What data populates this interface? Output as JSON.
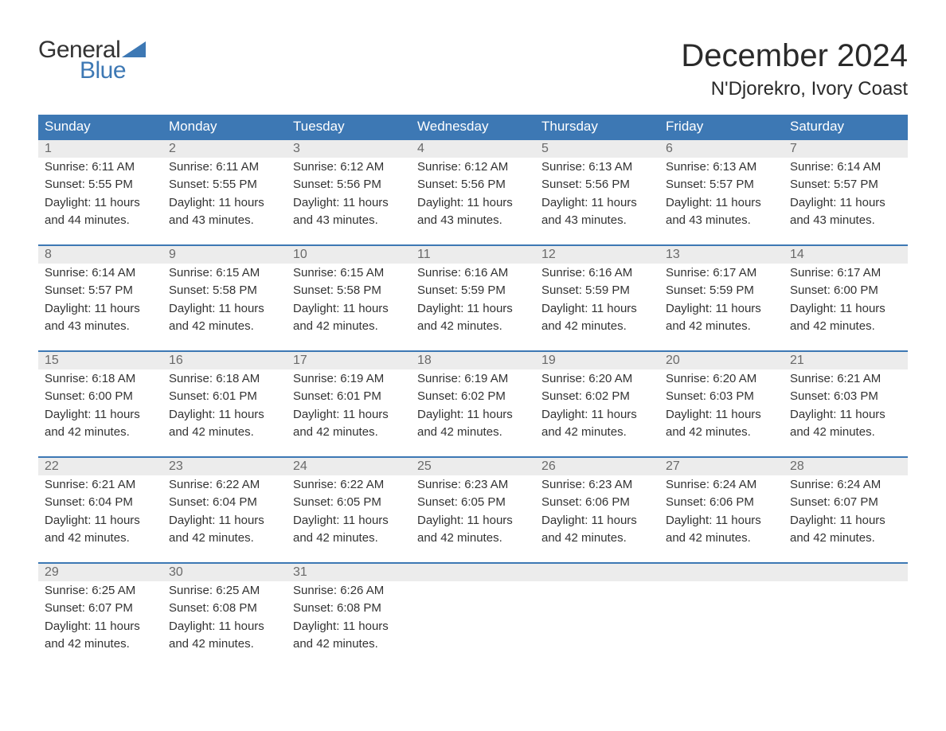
{
  "logo": {
    "general": "General",
    "blue": "Blue"
  },
  "title": "December 2024",
  "location": "N'Djorekro, Ivory Coast",
  "colors": {
    "header_bg": "#3d78b4",
    "header_text": "#ffffff",
    "daynum_bg": "#ececec",
    "daynum_text": "#6a6a6a",
    "week_border": "#3d78b4",
    "body_text": "#333333",
    "logo_blue": "#3d78b4",
    "page_bg": "#ffffff"
  },
  "fonts": {
    "title_size_pt": 30,
    "location_size_pt": 18,
    "header_size_pt": 13,
    "daynum_size_pt": 12,
    "body_size_pt": 11
  },
  "weekdays": [
    "Sunday",
    "Monday",
    "Tuesday",
    "Wednesday",
    "Thursday",
    "Friday",
    "Saturday"
  ],
  "weeks": [
    [
      {
        "n": "1",
        "sr": "Sunrise: 6:11 AM",
        "ss": "Sunset: 5:55 PM",
        "d1": "Daylight: 11 hours",
        "d2": "and 44 minutes."
      },
      {
        "n": "2",
        "sr": "Sunrise: 6:11 AM",
        "ss": "Sunset: 5:55 PM",
        "d1": "Daylight: 11 hours",
        "d2": "and 43 minutes."
      },
      {
        "n": "3",
        "sr": "Sunrise: 6:12 AM",
        "ss": "Sunset: 5:56 PM",
        "d1": "Daylight: 11 hours",
        "d2": "and 43 minutes."
      },
      {
        "n": "4",
        "sr": "Sunrise: 6:12 AM",
        "ss": "Sunset: 5:56 PM",
        "d1": "Daylight: 11 hours",
        "d2": "and 43 minutes."
      },
      {
        "n": "5",
        "sr": "Sunrise: 6:13 AM",
        "ss": "Sunset: 5:56 PM",
        "d1": "Daylight: 11 hours",
        "d2": "and 43 minutes."
      },
      {
        "n": "6",
        "sr": "Sunrise: 6:13 AM",
        "ss": "Sunset: 5:57 PM",
        "d1": "Daylight: 11 hours",
        "d2": "and 43 minutes."
      },
      {
        "n": "7",
        "sr": "Sunrise: 6:14 AM",
        "ss": "Sunset: 5:57 PM",
        "d1": "Daylight: 11 hours",
        "d2": "and 43 minutes."
      }
    ],
    [
      {
        "n": "8",
        "sr": "Sunrise: 6:14 AM",
        "ss": "Sunset: 5:57 PM",
        "d1": "Daylight: 11 hours",
        "d2": "and 43 minutes."
      },
      {
        "n": "9",
        "sr": "Sunrise: 6:15 AM",
        "ss": "Sunset: 5:58 PM",
        "d1": "Daylight: 11 hours",
        "d2": "and 42 minutes."
      },
      {
        "n": "10",
        "sr": "Sunrise: 6:15 AM",
        "ss": "Sunset: 5:58 PM",
        "d1": "Daylight: 11 hours",
        "d2": "and 42 minutes."
      },
      {
        "n": "11",
        "sr": "Sunrise: 6:16 AM",
        "ss": "Sunset: 5:59 PM",
        "d1": "Daylight: 11 hours",
        "d2": "and 42 minutes."
      },
      {
        "n": "12",
        "sr": "Sunrise: 6:16 AM",
        "ss": "Sunset: 5:59 PM",
        "d1": "Daylight: 11 hours",
        "d2": "and 42 minutes."
      },
      {
        "n": "13",
        "sr": "Sunrise: 6:17 AM",
        "ss": "Sunset: 5:59 PM",
        "d1": "Daylight: 11 hours",
        "d2": "and 42 minutes."
      },
      {
        "n": "14",
        "sr": "Sunrise: 6:17 AM",
        "ss": "Sunset: 6:00 PM",
        "d1": "Daylight: 11 hours",
        "d2": "and 42 minutes."
      }
    ],
    [
      {
        "n": "15",
        "sr": "Sunrise: 6:18 AM",
        "ss": "Sunset: 6:00 PM",
        "d1": "Daylight: 11 hours",
        "d2": "and 42 minutes."
      },
      {
        "n": "16",
        "sr": "Sunrise: 6:18 AM",
        "ss": "Sunset: 6:01 PM",
        "d1": "Daylight: 11 hours",
        "d2": "and 42 minutes."
      },
      {
        "n": "17",
        "sr": "Sunrise: 6:19 AM",
        "ss": "Sunset: 6:01 PM",
        "d1": "Daylight: 11 hours",
        "d2": "and 42 minutes."
      },
      {
        "n": "18",
        "sr": "Sunrise: 6:19 AM",
        "ss": "Sunset: 6:02 PM",
        "d1": "Daylight: 11 hours",
        "d2": "and 42 minutes."
      },
      {
        "n": "19",
        "sr": "Sunrise: 6:20 AM",
        "ss": "Sunset: 6:02 PM",
        "d1": "Daylight: 11 hours",
        "d2": "and 42 minutes."
      },
      {
        "n": "20",
        "sr": "Sunrise: 6:20 AM",
        "ss": "Sunset: 6:03 PM",
        "d1": "Daylight: 11 hours",
        "d2": "and 42 minutes."
      },
      {
        "n": "21",
        "sr": "Sunrise: 6:21 AM",
        "ss": "Sunset: 6:03 PM",
        "d1": "Daylight: 11 hours",
        "d2": "and 42 minutes."
      }
    ],
    [
      {
        "n": "22",
        "sr": "Sunrise: 6:21 AM",
        "ss": "Sunset: 6:04 PM",
        "d1": "Daylight: 11 hours",
        "d2": "and 42 minutes."
      },
      {
        "n": "23",
        "sr": "Sunrise: 6:22 AM",
        "ss": "Sunset: 6:04 PM",
        "d1": "Daylight: 11 hours",
        "d2": "and 42 minutes."
      },
      {
        "n": "24",
        "sr": "Sunrise: 6:22 AM",
        "ss": "Sunset: 6:05 PM",
        "d1": "Daylight: 11 hours",
        "d2": "and 42 minutes."
      },
      {
        "n": "25",
        "sr": "Sunrise: 6:23 AM",
        "ss": "Sunset: 6:05 PM",
        "d1": "Daylight: 11 hours",
        "d2": "and 42 minutes."
      },
      {
        "n": "26",
        "sr": "Sunrise: 6:23 AM",
        "ss": "Sunset: 6:06 PM",
        "d1": "Daylight: 11 hours",
        "d2": "and 42 minutes."
      },
      {
        "n": "27",
        "sr": "Sunrise: 6:24 AM",
        "ss": "Sunset: 6:06 PM",
        "d1": "Daylight: 11 hours",
        "d2": "and 42 minutes."
      },
      {
        "n": "28",
        "sr": "Sunrise: 6:24 AM",
        "ss": "Sunset: 6:07 PM",
        "d1": "Daylight: 11 hours",
        "d2": "and 42 minutes."
      }
    ],
    [
      {
        "n": "29",
        "sr": "Sunrise: 6:25 AM",
        "ss": "Sunset: 6:07 PM",
        "d1": "Daylight: 11 hours",
        "d2": "and 42 minutes."
      },
      {
        "n": "30",
        "sr": "Sunrise: 6:25 AM",
        "ss": "Sunset: 6:08 PM",
        "d1": "Daylight: 11 hours",
        "d2": "and 42 minutes."
      },
      {
        "n": "31",
        "sr": "Sunrise: 6:26 AM",
        "ss": "Sunset: 6:08 PM",
        "d1": "Daylight: 11 hours",
        "d2": "and 42 minutes."
      },
      null,
      null,
      null,
      null
    ]
  ]
}
